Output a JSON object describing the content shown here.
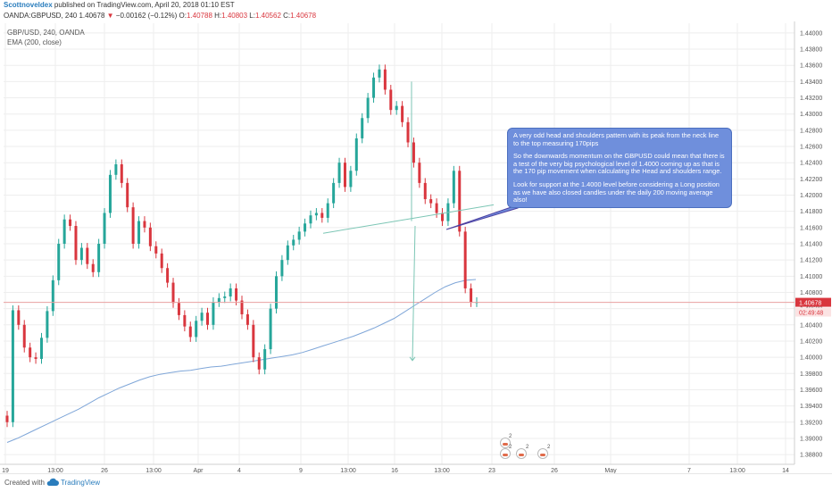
{
  "header": {
    "author": "Scottnoveldex",
    "published": "published on TradingView.com, April 20, 2018 01:10 EST"
  },
  "quote": {
    "symbol": "OANDA:GBPUSD, 240",
    "last": "1.40678",
    "change": "−0.00162 (−0.12%)",
    "open_label": "O:",
    "open": "1.40788",
    "high_label": "H:",
    "high": "1.40803",
    "low_label": "L:",
    "low": "1.40562",
    "close_label": "C:",
    "close": "1.40678"
  },
  "legend": {
    "instrument": "GBP/USD, 240, OANDA",
    "indicator": "EMA (200, close)"
  },
  "annotation": {
    "p1": "A very odd head and shoulders pattern with its peak from the neck line to the top measuring 170pips",
    "p2": "So the downwards momentum on the GBPUSD could mean that there is a test of the very big psychological level of 1.4000 coming up as that is the 170 pip movement when calculating the Head and shoulders range.",
    "p3": "Look for support at the 1.4000 level before considering a Long position as we have also closed candles under the daily 200 moving average also!"
  },
  "price_badge": {
    "price": "1.40678",
    "countdown": "02:49:48"
  },
  "events": [
    "2",
    "2",
    "2",
    "2"
  ],
  "footer": {
    "created": "Created with",
    "brand": "TradingView"
  },
  "colors": {
    "up": "#26a69a",
    "down": "#d9363e",
    "ema": "#7fa6d8",
    "annotation": "#6f8fdc",
    "grid": "#eeeeee"
  },
  "chart_data": {
    "type": "candlestick",
    "title": "GBP/USD, 240, OANDA",
    "ylim": [
      1.3868,
      1.4412
    ],
    "y_ticks": [
      1.388,
      1.39,
      1.392,
      1.394,
      1.396,
      1.398,
      1.4,
      1.402,
      1.404,
      1.406,
      1.408,
      1.41,
      1.412,
      1.414,
      1.416,
      1.418,
      1.42,
      1.422,
      1.424,
      1.426,
      1.428,
      1.43,
      1.432,
      1.434,
      1.436,
      1.438,
      1.44
    ],
    "x_tick_labels": [
      "19",
      "13:00",
      "26",
      "13:00",
      "Apr",
      "4",
      "9",
      "13:00",
      "16",
      "13:00",
      "23",
      "26",
      "May",
      "7",
      "13:00",
      "14"
    ],
    "grid": true,
    "legend": "top-left",
    "close": [
      1.392,
      1.4058,
      1.404,
      1.4012,
      1.4,
      1.3998,
      1.4024,
      1.4057,
      1.4095,
      1.414,
      1.417,
      1.4162,
      1.412,
      1.4135,
      1.4115,
      1.4105,
      1.414,
      1.4178,
      1.4225,
      1.4238,
      1.4215,
      1.4185,
      1.414,
      1.4168,
      1.416,
      1.4137,
      1.4128,
      1.411,
      1.4092,
      1.4067,
      1.4052,
      1.4038,
      1.4025,
      1.4045,
      1.4055,
      1.404,
      1.4068,
      1.4073,
      1.4075,
      1.4085,
      1.407,
      1.4053,
      1.404,
      1.4,
      1.3985,
      1.401,
      1.406,
      1.41,
      1.412,
      1.4138,
      1.4145,
      1.4155,
      1.4165,
      1.4175,
      1.4178,
      1.4172,
      1.419,
      1.4215,
      1.424,
      1.421,
      1.423,
      1.427,
      1.4295,
      1.432,
      1.4345,
      1.4355,
      1.433,
      1.4305,
      1.431,
      1.429,
      1.4265,
      1.424,
      1.4215,
      1.4195,
      1.419,
      1.4178,
      1.4168,
      1.419,
      1.423,
      1.4155,
      1.4085,
      1.4068,
      1.4068
    ],
    "ema": [
      1.3895,
      1.39,
      1.3906,
      1.3912,
      1.3918,
      1.3924,
      1.393,
      1.3936,
      1.3943,
      1.395,
      1.3956,
      1.3962,
      1.3967,
      1.3972,
      1.3976,
      1.3979,
      1.3981,
      1.3983,
      1.3984,
      1.3986,
      1.3988,
      1.3989,
      1.3991,
      1.3993,
      1.3995,
      1.3997,
      1.3999,
      1.4001,
      1.4003,
      1.4006,
      1.401,
      1.4014,
      1.4018,
      1.4022,
      1.4026,
      1.4031,
      1.4036,
      1.4042,
      1.4048,
      1.4056,
      1.4064,
      1.4072,
      1.408,
      1.4087,
      1.4092,
      1.4095,
      1.4096
    ],
    "annotations": [
      "neckline",
      "head-to-neckline measurement",
      "projected target"
    ]
  }
}
